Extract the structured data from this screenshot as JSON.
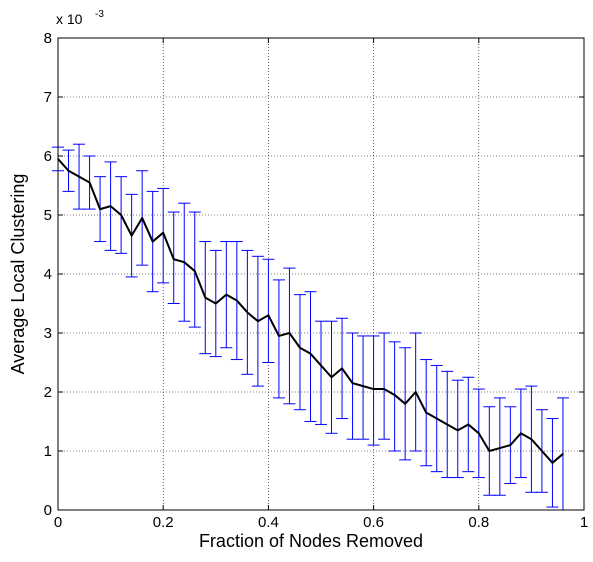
{
  "chart_data": {
    "type": "line",
    "xlabel": "Fraction of Nodes Removed",
    "ylabel": "Average Local Clustering",
    "xlim": [
      0,
      1
    ],
    "ylim": [
      0,
      8
    ],
    "y_exponent_label": "x 10",
    "y_exponent_power": "-3",
    "x_ticks": [
      "0",
      "0.2",
      "0.4",
      "0.6",
      "0.8",
      "1"
    ],
    "y_ticks": [
      "0",
      "1",
      "2",
      "3",
      "4",
      "5",
      "6",
      "7",
      "8"
    ],
    "grid": true,
    "error_bars": true,
    "colors": {
      "line": "#000000",
      "error_bars": "#0000ff",
      "grid": "#000000"
    },
    "x": [
      0.0,
      0.02,
      0.04,
      0.06,
      0.08,
      0.1,
      0.12,
      0.14,
      0.16,
      0.18,
      0.2,
      0.22,
      0.24,
      0.26,
      0.28,
      0.3,
      0.32,
      0.34,
      0.36,
      0.38,
      0.4,
      0.42,
      0.44,
      0.46,
      0.48,
      0.5,
      0.52,
      0.54,
      0.56,
      0.58,
      0.6,
      0.62,
      0.64,
      0.66,
      0.68,
      0.7,
      0.72,
      0.74,
      0.76,
      0.78,
      0.8,
      0.82,
      0.84,
      0.86,
      0.88,
      0.9,
      0.92,
      0.94,
      0.96
    ],
    "y": [
      5.95,
      5.75,
      5.65,
      5.55,
      5.1,
      5.15,
      5.0,
      4.65,
      4.95,
      4.55,
      4.7,
      4.25,
      4.2,
      4.05,
      3.6,
      3.5,
      3.65,
      3.55,
      3.35,
      3.2,
      3.3,
      2.95,
      3.0,
      2.75,
      2.65,
      2.45,
      2.25,
      2.4,
      2.15,
      2.1,
      2.05,
      2.05,
      1.95,
      1.8,
      2.0,
      1.65,
      1.55,
      1.45,
      1.35,
      1.45,
      1.3,
      1.0,
      1.05,
      1.1,
      1.3,
      1.2,
      1.0,
      0.8,
      0.95
    ],
    "y_lower": [
      5.75,
      5.4,
      5.1,
      5.1,
      4.55,
      4.4,
      4.35,
      3.95,
      4.15,
      3.7,
      3.85,
      3.5,
      3.2,
      3.1,
      2.65,
      2.6,
      2.75,
      2.55,
      2.3,
      2.1,
      2.5,
      1.9,
      1.8,
      1.7,
      1.5,
      1.45,
      1.3,
      1.55,
      1.2,
      1.2,
      1.1,
      1.2,
      1.0,
      0.85,
      1.0,
      0.75,
      0.65,
      0.55,
      0.55,
      0.65,
      0.55,
      0.25,
      0.25,
      0.45,
      0.55,
      0.3,
      0.3,
      0.05,
      0.0
    ],
    "y_upper": [
      6.15,
      6.1,
      6.2,
      6.0,
      5.65,
      5.9,
      5.65,
      5.35,
      5.75,
      5.4,
      5.45,
      5.05,
      5.2,
      5.05,
      4.55,
      4.4,
      4.55,
      4.55,
      4.4,
      4.3,
      4.25,
      3.9,
      4.1,
      3.65,
      3.7,
      3.2,
      3.2,
      3.25,
      3.0,
      2.95,
      2.95,
      3.0,
      2.85,
      2.75,
      3.0,
      2.55,
      2.45,
      2.35,
      2.2,
      2.25,
      2.05,
      1.75,
      1.9,
      1.75,
      2.05,
      2.1,
      1.7,
      1.55,
      1.9
    ]
  }
}
